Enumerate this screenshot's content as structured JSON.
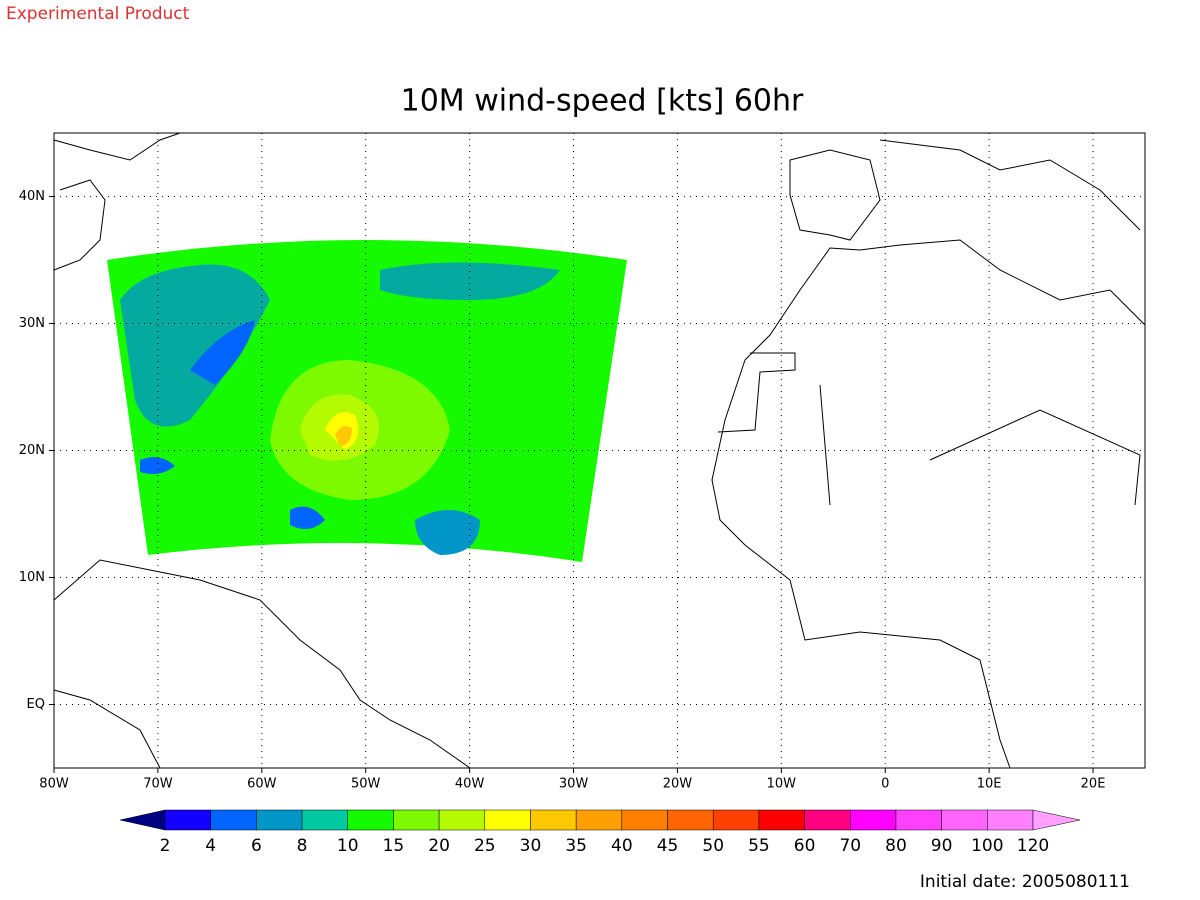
{
  "header": "Experimental Product",
  "chart_data": {
    "type": "map",
    "title": "10M wind-speed [kts] 60hr",
    "xlim": [
      -80,
      25
    ],
    "ylim": [
      -5,
      45
    ],
    "xticks": [
      {
        "value": -80,
        "label": "80W"
      },
      {
        "value": -70,
        "label": "70W"
      },
      {
        "value": -60,
        "label": "60W"
      },
      {
        "value": -50,
        "label": "50W"
      },
      {
        "value": -40,
        "label": "40W"
      },
      {
        "value": -30,
        "label": "30W"
      },
      {
        "value": -20,
        "label": "20W"
      },
      {
        "value": -10,
        "label": "10W"
      },
      0,
      {
        "value": 10,
        "label": "10E"
      },
      {
        "value": 20,
        "label": "20E"
      }
    ],
    "yticks": [
      {
        "value": 0,
        "label": "EQ"
      },
      {
        "value": 10,
        "label": "10N"
      },
      {
        "value": 20,
        "label": "20N"
      },
      {
        "value": 30,
        "label": "30N"
      },
      {
        "value": 40,
        "label": "40N"
      }
    ],
    "grid": true,
    "colorbar": {
      "levels": [
        2,
        4,
        6,
        8,
        10,
        15,
        20,
        25,
        30,
        35,
        40,
        45,
        50,
        55,
        60,
        70,
        80,
        90,
        100,
        120
      ],
      "colors": [
        "#000080",
        "#1400ff",
        "#0064ff",
        "#0096c8",
        "#00c8a0",
        "#16fa00",
        "#7dfa00",
        "#b4fa00",
        "#ffff00",
        "#ffc800",
        "#ffa000",
        "#ff8000",
        "#ff6400",
        "#ff4000",
        "#ff0000",
        "#ff0080",
        "#ff00ff",
        "#ff40ff",
        "#ff64ff",
        "#ff80ff",
        "#ffa0ff"
      ]
    }
  },
  "footer": "Initial date: 2005080111"
}
